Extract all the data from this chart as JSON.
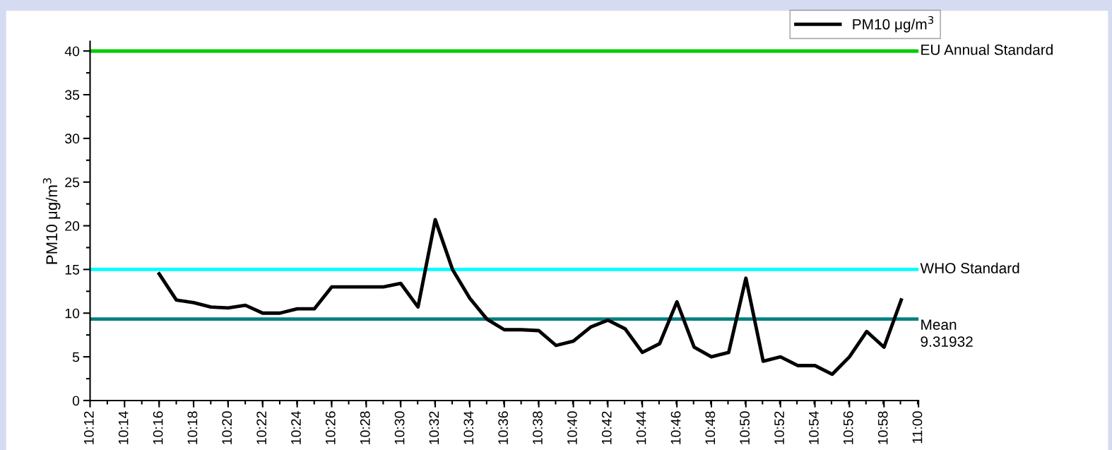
{
  "chart_data": {
    "type": "line",
    "ylabel": "PM10 μg/m$^{3}$",
    "x": [
      10.2667,
      10.2833,
      10.3,
      10.3167,
      10.3333,
      10.35,
      10.3667,
      10.3833,
      10.4,
      10.4167,
      10.4333,
      10.45,
      10.4667,
      10.4833,
      10.5,
      10.5167,
      10.5333,
      10.55,
      10.5667,
      10.5833,
      10.6,
      10.6167,
      10.6333,
      10.65,
      10.6667,
      10.6833,
      10.7,
      10.7167,
      10.7333,
      10.75,
      10.7667,
      10.7833,
      10.8,
      10.8167,
      10.8333,
      10.85,
      10.8667,
      10.8833,
      10.9,
      10.9167,
      10.9333,
      10.95,
      10.9667,
      10.9833
    ],
    "series": [
      {
        "name": "PM10 μg/m$^{3}$",
        "color": "#000000",
        "values": [
          14.5,
          11.5,
          11.2,
          10.7,
          10.6,
          10.9,
          10.0,
          10.0,
          10.5,
          10.5,
          13.0,
          13.0,
          13.0,
          13.0,
          13.4,
          10.7,
          20.7,
          15.0,
          11.7,
          9.3,
          8.1,
          8.1,
          8.0,
          6.3,
          6.8,
          8.4,
          9.2,
          8.2,
          5.5,
          6.5,
          11.3,
          6.1,
          5.0,
          5.5,
          14.0,
          4.5,
          5.0,
          4.0,
          4.0,
          3.0,
          5.0,
          7.9,
          6.1,
          11.5
        ]
      }
    ],
    "xlim": [
      10.2,
      11.0
    ],
    "xticks": [
      {
        "value": 10.2,
        "label": "10:12"
      },
      {
        "value": 10.2333,
        "label": "10:14"
      },
      {
        "value": 10.2667,
        "label": "10:16"
      },
      {
        "value": 10.3,
        "label": "10:18"
      },
      {
        "value": 10.3333,
        "label": "10:20"
      },
      {
        "value": 10.3667,
        "label": "10:22"
      },
      {
        "value": 10.4,
        "label": "10:24"
      },
      {
        "value": 10.4333,
        "label": "10:26"
      },
      {
        "value": 10.4667,
        "label": "10:28"
      },
      {
        "value": 10.5,
        "label": "10:30"
      },
      {
        "value": 10.5333,
        "label": "10:32"
      },
      {
        "value": 10.5667,
        "label": "10:34"
      },
      {
        "value": 10.6,
        "label": "10:36"
      },
      {
        "value": 10.6333,
        "label": "10:38"
      },
      {
        "value": 10.6667,
        "label": "10:40"
      },
      {
        "value": 10.7,
        "label": "10:42"
      },
      {
        "value": 10.7333,
        "label": "10:44"
      },
      {
        "value": 10.7667,
        "label": "10:46"
      },
      {
        "value": 10.8,
        "label": "10:48"
      },
      {
        "value": 10.8333,
        "label": "10:50"
      },
      {
        "value": 10.8667,
        "label": "10:52"
      },
      {
        "value": 10.9,
        "label": "10:54"
      },
      {
        "value": 10.9333,
        "label": "10:56"
      },
      {
        "value": 10.9667,
        "label": "10:58"
      },
      {
        "value": 11.0,
        "label": "11:00"
      }
    ],
    "ylim": [
      0,
      41.1
    ],
    "yticks": [
      0,
      5,
      10,
      15,
      20,
      25,
      30,
      35,
      40
    ],
    "ref_lines": [
      {
        "axis": "y",
        "value": 40,
        "label": "EU Annual Standard",
        "color": "#00cc00"
      },
      {
        "axis": "y",
        "value": 15,
        "label": "WHO Standard",
        "color": "#00ffff"
      },
      {
        "axis": "y",
        "value": 9.31932,
        "label": "Mean\n9.31932",
        "color": "#008080"
      }
    ],
    "grid": false,
    "legend": "top right",
    "marker": "none",
    "line_style": "solid"
  }
}
